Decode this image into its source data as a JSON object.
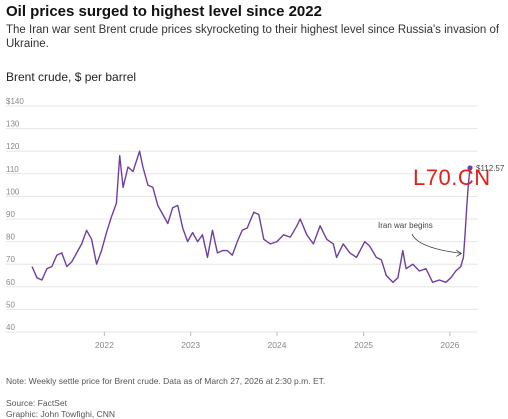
{
  "header": {
    "title": "Oil prices surged to highest level since 2022",
    "subtitle": "The Iran war sent Brent crude prices skyrocketing to their highest level since Russia's invasion of Ukraine.",
    "chart_label": "Brent crude, $ per barrel"
  },
  "footer": {
    "note": "Note: Weekly settle price for Brent crude. Data as of March 27, 2026 at 2:30 p.m. ET.",
    "source": "Source: FactSet",
    "graphic": "Graphic: John Towfighi, CNN"
  },
  "watermark": "L70.CN",
  "colors": {
    "line": "#6f3fa0",
    "grid": "#e6e6e6",
    "axis_text": "#888888"
  },
  "chart_data": {
    "type": "line",
    "ylabel": "",
    "xlabel": "",
    "ylim": [
      40,
      140
    ],
    "xlim": [
      "2021-03-01",
      "2026-03-27"
    ],
    "grid": true,
    "y_ticks": [
      "$140",
      "130",
      "120",
      "110",
      "100",
      "90",
      "80",
      "70",
      "60",
      "50",
      "40"
    ],
    "x_ticks": [
      "2022",
      "2023",
      "2024",
      "2025",
      "2026"
    ],
    "annotations": [
      {
        "text": "Iran war begins",
        "x": "2026-02-27",
        "y": 73
      },
      {
        "text": "$112.57",
        "x": "2026-03-27",
        "y": 112.57
      }
    ],
    "series": [
      {
        "x": [
          "2021-03-01",
          "2021-03-22",
          "2021-04-12",
          "2021-05-03",
          "2021-05-24",
          "2021-06-14",
          "2021-07-05",
          "2021-07-26",
          "2021-08-16",
          "2021-09-06",
          "2021-09-27",
          "2021-10-18",
          "2021-11-08",
          "2021-11-29",
          "2021-12-20",
          "2022-01-10",
          "2022-01-31",
          "2022-02-21",
          "2022-03-07",
          "2022-03-21",
          "2022-04-11",
          "2022-05-02",
          "2022-05-30",
          "2022-06-13",
          "2022-07-04",
          "2022-07-25",
          "2022-08-15",
          "2022-09-05",
          "2022-09-26",
          "2022-10-17",
          "2022-11-07",
          "2022-11-28",
          "2022-12-19",
          "2023-01-09",
          "2023-01-30",
          "2023-02-20",
          "2023-03-13",
          "2023-04-03",
          "2023-04-24",
          "2023-05-15",
          "2023-06-05",
          "2023-06-26",
          "2023-07-17",
          "2023-08-07",
          "2023-08-28",
          "2023-09-25",
          "2023-10-16",
          "2023-11-06",
          "2023-12-04",
          "2024-01-01",
          "2024-01-29",
          "2024-02-26",
          "2024-03-25",
          "2024-04-08",
          "2024-05-06",
          "2024-06-03",
          "2024-07-01",
          "2024-07-29",
          "2024-08-26",
          "2024-09-09",
          "2024-10-07",
          "2024-11-04",
          "2024-12-02",
          "2025-01-06",
          "2025-01-27",
          "2025-02-24",
          "2025-03-17",
          "2025-04-07",
          "2025-05-05",
          "2025-05-26",
          "2025-06-16",
          "2025-06-30",
          "2025-07-28",
          "2025-08-25",
          "2025-09-22",
          "2025-10-20",
          "2025-11-17",
          "2025-12-15",
          "2026-01-05",
          "2026-01-26",
          "2026-02-16",
          "2026-02-27",
          "2026-03-06",
          "2026-03-13",
          "2026-03-20",
          "2026-03-27"
        ],
        "values": [
          69,
          64,
          63,
          68,
          69,
          74,
          75,
          69,
          71,
          75,
          79,
          85,
          81,
          70,
          76,
          84,
          91,
          97,
          118,
          104,
          113,
          111,
          120,
          113,
          105,
          104,
          96,
          92,
          88,
          95,
          96,
          86,
          80,
          84,
          80,
          83,
          73,
          85,
          75,
          76,
          76,
          74,
          80,
          85,
          86,
          93,
          92,
          81,
          79,
          80,
          83,
          82,
          87,
          90,
          83,
          79,
          87,
          81,
          79,
          73,
          79,
          75,
          73,
          80,
          78,
          73,
          72,
          65,
          62,
          64,
          76,
          68,
          70,
          67,
          68,
          62,
          63,
          62,
          64,
          67,
          69,
          73,
          83,
          95,
          105,
          112.57
        ]
      }
    ]
  }
}
